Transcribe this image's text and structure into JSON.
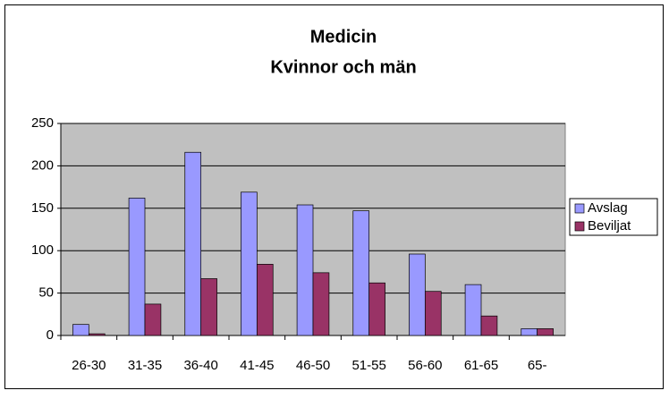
{
  "chart_data": {
    "type": "bar",
    "title": "Medicin",
    "subtitle": "Kvinnor och män",
    "categories": [
      "26-30",
      "31-35",
      "36-40",
      "41-45",
      "46-50",
      "51-55",
      "56-60",
      "61-65",
      "65-"
    ],
    "series": [
      {
        "name": "Avslag",
        "color": "#9999ff",
        "values": [
          13,
          162,
          216,
          169,
          154,
          147,
          96,
          60,
          8
        ]
      },
      {
        "name": "Beviljat",
        "color": "#993366",
        "values": [
          2,
          37,
          67,
          84,
          74,
          62,
          52,
          23,
          8
        ]
      }
    ],
    "ylim": [
      0,
      250
    ],
    "yticks": [
      0,
      50,
      100,
      150,
      200,
      250
    ],
    "grid": true,
    "legend": "right"
  }
}
